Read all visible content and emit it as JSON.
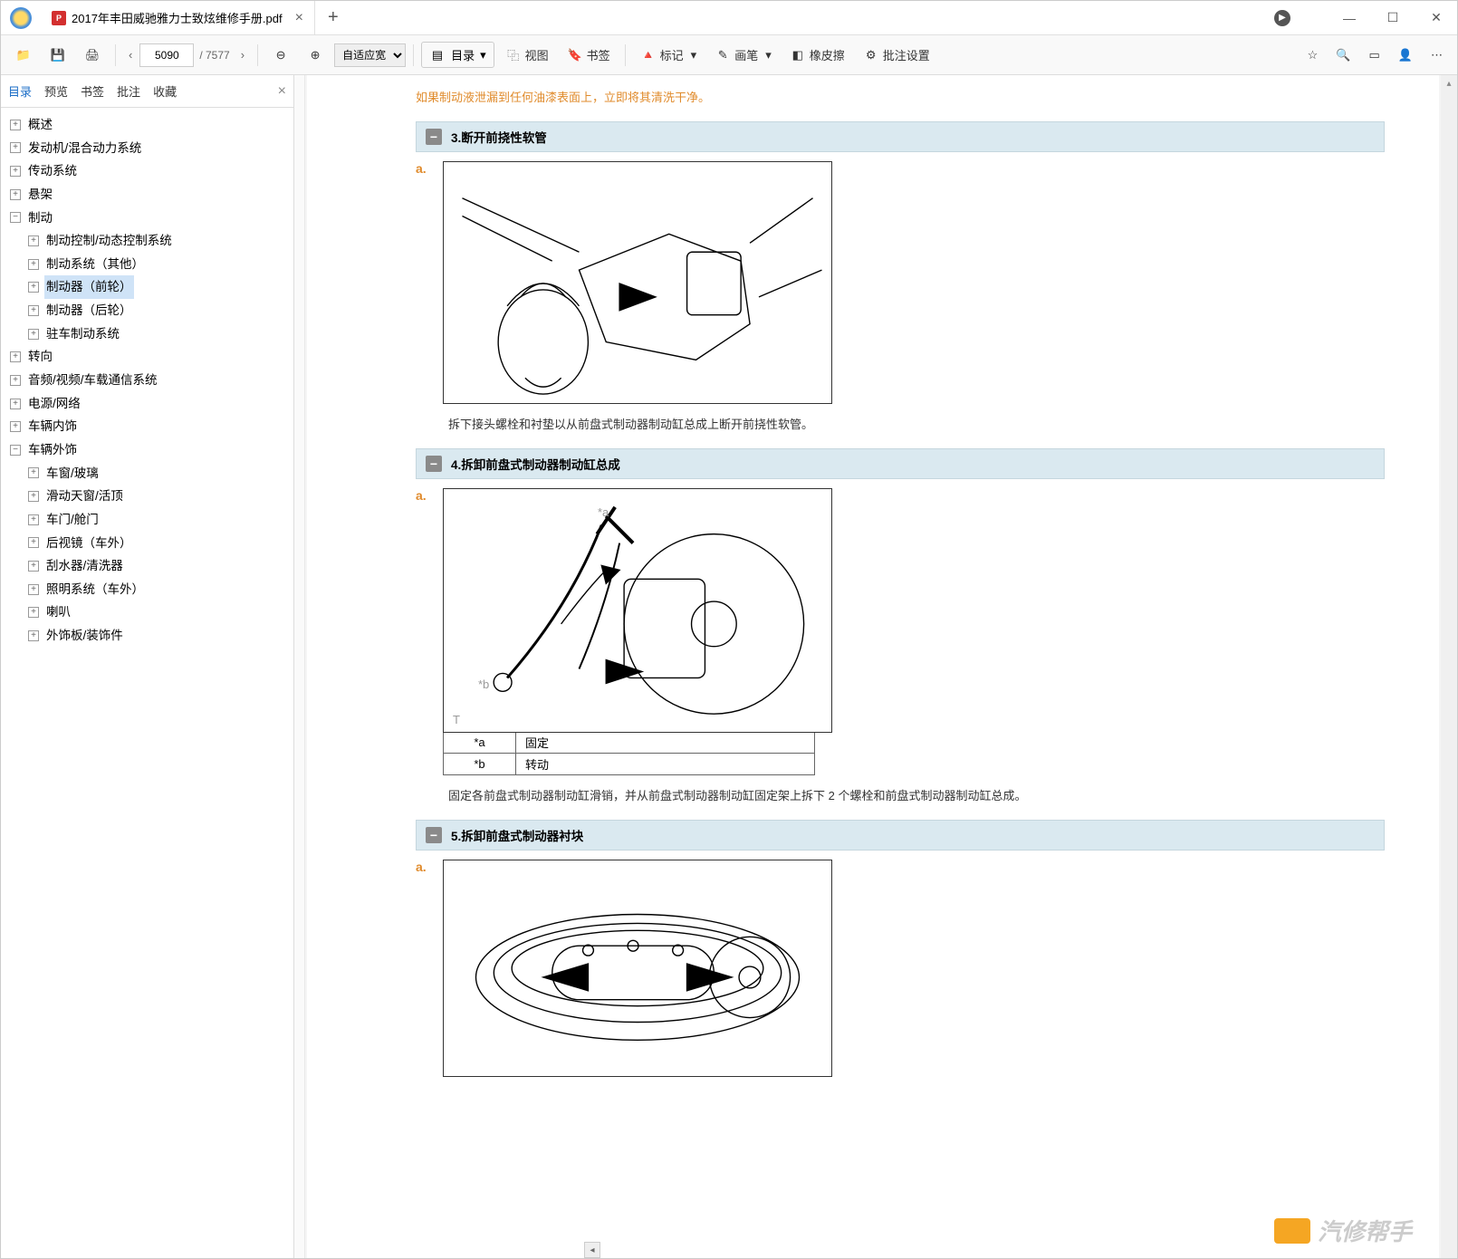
{
  "titlebar": {
    "tab_title": "2017年丰田威驰雅力士致炫维修手册.pdf",
    "pdf_badge": "P"
  },
  "toolbar": {
    "page_current": "5090",
    "page_total": "/ 7577",
    "zoom_mode": "自适应宽",
    "catalog": "目录",
    "view": "视图",
    "bookmark": "书签",
    "mark": "标记",
    "pen": "画笔",
    "eraser": "橡皮擦",
    "batch": "批注设置"
  },
  "sidebar": {
    "tabs": {
      "catalog": "目录",
      "preview": "预览",
      "bookmark": "书签",
      "annotation": "批注",
      "favorite": "收藏"
    },
    "tree": [
      {
        "label": "概述",
        "indent": 0,
        "toggle": "+"
      },
      {
        "label": "发动机/混合动力系统",
        "indent": 0,
        "toggle": "+"
      },
      {
        "label": "传动系统",
        "indent": 0,
        "toggle": "+"
      },
      {
        "label": "悬架",
        "indent": 0,
        "toggle": "+"
      },
      {
        "label": "制动",
        "indent": 0,
        "toggle": "−"
      },
      {
        "label": "制动控制/动态控制系统",
        "indent": 1,
        "toggle": "+"
      },
      {
        "label": "制动系统（其他）",
        "indent": 1,
        "toggle": "+"
      },
      {
        "label": "制动器（前轮）",
        "indent": 1,
        "toggle": "+",
        "selected": true
      },
      {
        "label": "制动器（后轮）",
        "indent": 1,
        "toggle": "+"
      },
      {
        "label": "驻车制动系统",
        "indent": 1,
        "toggle": "+"
      },
      {
        "label": "转向",
        "indent": 0,
        "toggle": "+"
      },
      {
        "label": "音频/视频/车载通信系统",
        "indent": 0,
        "toggle": "+"
      },
      {
        "label": "电源/网络",
        "indent": 0,
        "toggle": "+"
      },
      {
        "label": "车辆内饰",
        "indent": 0,
        "toggle": "+"
      },
      {
        "label": "车辆外饰",
        "indent": 0,
        "toggle": "−"
      },
      {
        "label": "车窗/玻璃",
        "indent": 1,
        "toggle": "+"
      },
      {
        "label": "滑动天窗/活顶",
        "indent": 1,
        "toggle": "+"
      },
      {
        "label": "车门/舱门",
        "indent": 1,
        "toggle": "+"
      },
      {
        "label": "后视镜（车外）",
        "indent": 1,
        "toggle": "+"
      },
      {
        "label": "刮水器/清洗器",
        "indent": 1,
        "toggle": "+"
      },
      {
        "label": "照明系统（车外）",
        "indent": 1,
        "toggle": "+"
      },
      {
        "label": "喇叭",
        "indent": 1,
        "toggle": "+"
      },
      {
        "label": "外饰板/装饰件",
        "indent": 1,
        "toggle": "+"
      }
    ]
  },
  "content": {
    "warning": "如果制动液泄漏到任何油漆表面上，立即将其清洗干净。",
    "section3": {
      "title": "3.断开前挠性软管",
      "step": "a.",
      "desc": "拆下接头螺栓和衬垫以从前盘式制动器制动缸总成上断开前挠性软管。"
    },
    "section4": {
      "title": "4.拆卸前盘式制动器制动缸总成",
      "step": "a.",
      "label_a": "*a",
      "label_b": "*b",
      "label_t": "T",
      "legend": [
        {
          "k": "*a",
          "v": "固定"
        },
        {
          "k": "*b",
          "v": "转动"
        }
      ],
      "desc": "固定各前盘式制动器制动缸滑销，并从前盘式制动器制动缸固定架上拆下 2 个螺栓和前盘式制动器制动缸总成。"
    },
    "section5": {
      "title": "5.拆卸前盘式制动器衬块",
      "step": "a."
    },
    "watermark": "汽修帮手"
  }
}
